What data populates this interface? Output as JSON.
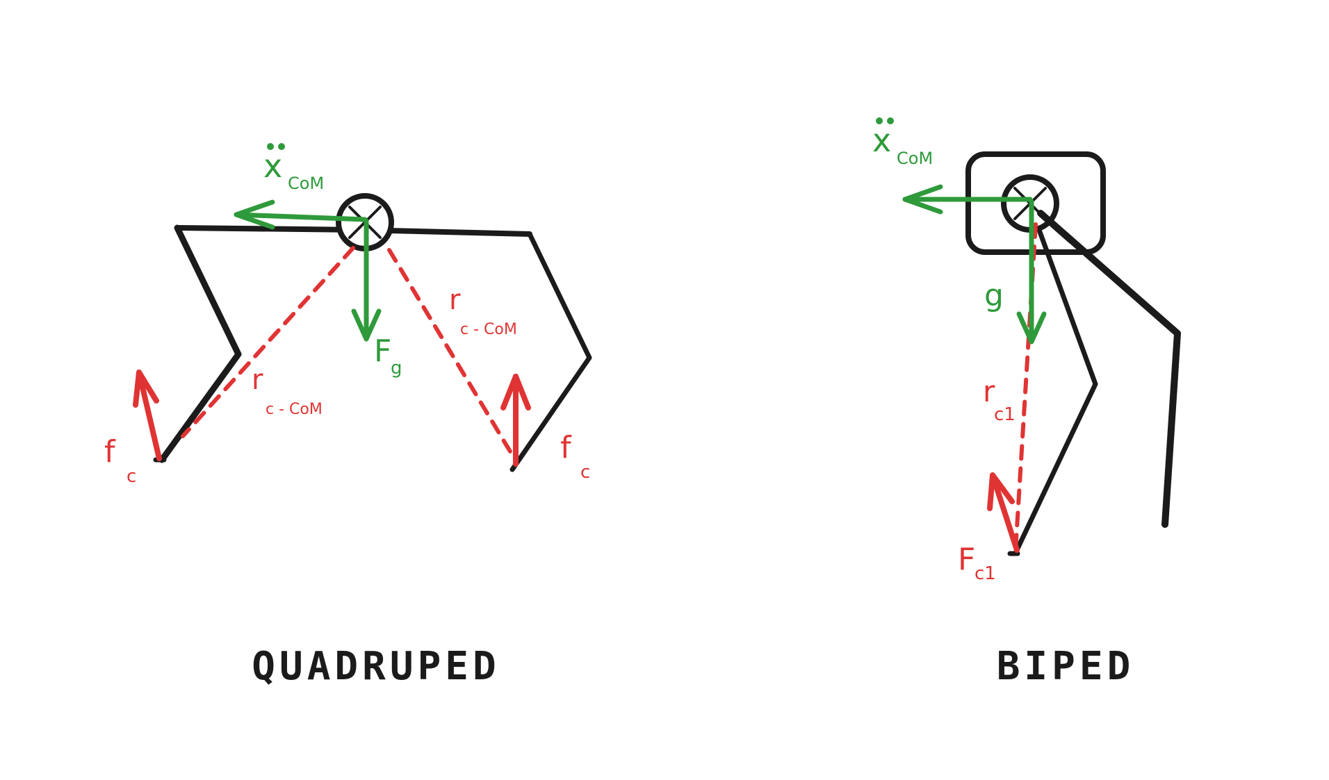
{
  "colors": {
    "ink": "#1b1b1b",
    "green": "#2f9a3b",
    "red": "#e03434",
    "background": "#ffffff"
  },
  "quadruped": {
    "title": "QUADRUPED",
    "acc_main": "x",
    "acc_sub": "CoM",
    "fg_main": "F",
    "fg_sub": "g",
    "r_left_main": "r",
    "r_left_sub": "c - CoM",
    "r_right_main": "r",
    "r_right_sub": "c - CoM",
    "f_left_main": "f",
    "f_left_sub": "c",
    "f_right_main": "f",
    "f_right_sub": "c"
  },
  "biped": {
    "title": "BIPED",
    "acc_main": "x",
    "acc_sub": "CoM",
    "g_label": "g",
    "r_main": "r",
    "r_sub": "c1",
    "f_main": "F",
    "f_sub": "c1"
  }
}
